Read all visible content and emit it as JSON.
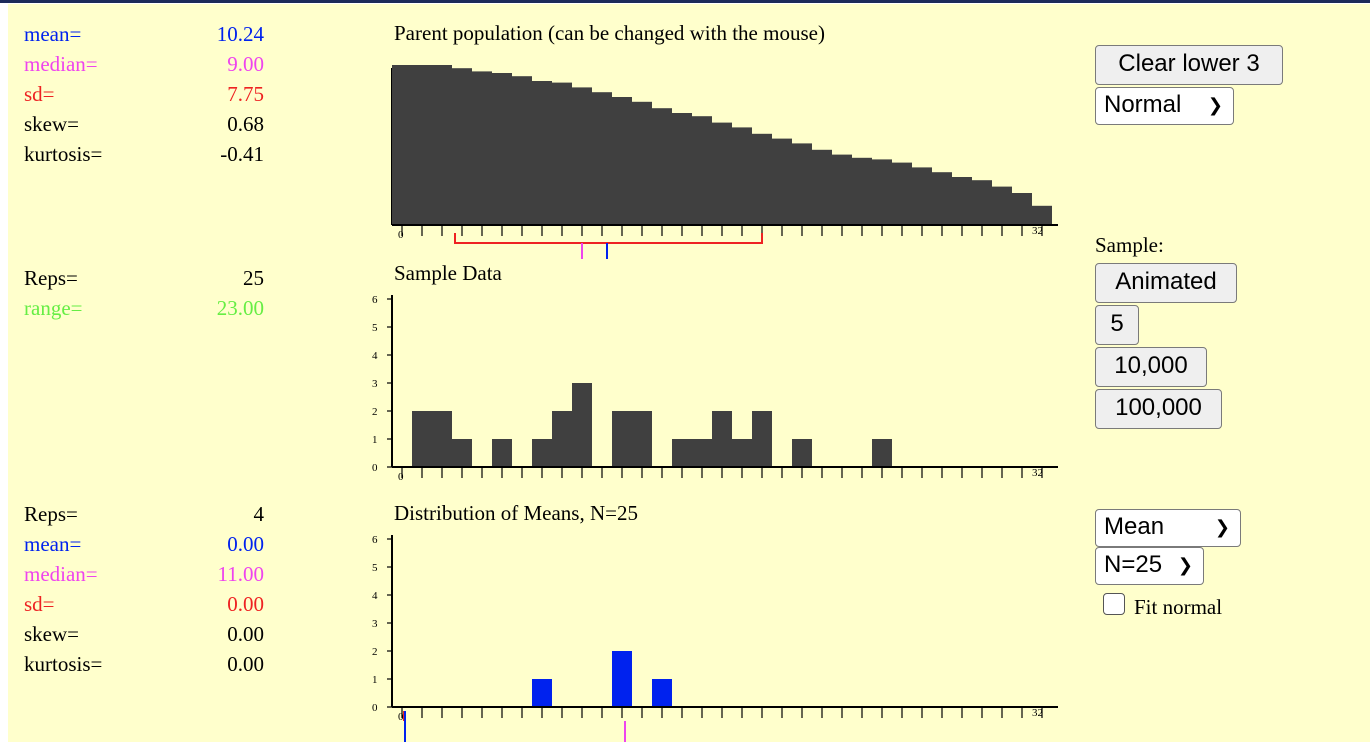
{
  "colors": {
    "mean": "#0022ee",
    "median": "#ee44ee",
    "sd": "#ee2222",
    "range": "#66ee44",
    "bar": "#404040",
    "means_bar": "#0022ee"
  },
  "parent_stats": [
    {
      "label": "mean=",
      "value": "10.24",
      "color": "#0022ee"
    },
    {
      "label": "median=",
      "value": "9.00",
      "color": "#ee44ee"
    },
    {
      "label": "sd=",
      "value": "7.75",
      "color": "#ee2222"
    },
    {
      "label": "skew=",
      "value": "0.68",
      "color": "#000000"
    },
    {
      "label": "kurtosis=",
      "value": "-0.41",
      "color": "#000000"
    }
  ],
  "sample_stats": [
    {
      "label": "Reps=",
      "value": "25",
      "color": "#000000"
    },
    {
      "label": "range=",
      "value": "23.00",
      "color": "#66ee44"
    }
  ],
  "means_stats": [
    {
      "label": "Reps=",
      "value": "4",
      "color": "#000000"
    },
    {
      "label": "mean=",
      "value": "0.00",
      "color": "#0022ee"
    },
    {
      "label": "median=",
      "value": "11.00",
      "color": "#ee44ee"
    },
    {
      "label": "sd=",
      "value": "0.00",
      "color": "#ee2222"
    },
    {
      "label": "skew=",
      "value": "0.00",
      "color": "#000000"
    },
    {
      "label": "kurtosis=",
      "value": "0.00",
      "color": "#000000"
    }
  ],
  "titles": {
    "parent": "Parent population (can be changed with the mouse)",
    "sample": "Sample Data",
    "means": "Distribution of Means, N=25"
  },
  "controls": {
    "clear_button": "Clear lower 3",
    "distribution_select": "Normal",
    "sample_label": "Sample:",
    "animated_button": "Animated",
    "five_button": "5",
    "ten_thousand_button": "10,000",
    "hundred_thousand_button": "100,000",
    "statistic_select": "Mean",
    "n_select": "N=25",
    "fit_normal_label": "Fit normal",
    "fit_normal_checked": false
  },
  "chart_data": [
    {
      "type": "bar",
      "title": "Parent population (can be changed with the mouse)",
      "xlim": [
        0,
        32
      ],
      "x_tick_labels": [
        "0",
        "32"
      ],
      "values": [
        5.0,
        5.0,
        5.0,
        4.9,
        4.8,
        4.75,
        4.65,
        4.5,
        4.45,
        4.3,
        4.15,
        4.0,
        3.85,
        3.65,
        3.5,
        3.4,
        3.2,
        3.05,
        2.85,
        2.7,
        2.55,
        2.35,
        2.2,
        2.1,
        2.05,
        1.95,
        1.8,
        1.65,
        1.5,
        1.4,
        1.2,
        1.0,
        0.6
      ],
      "markers": {
        "sd_from": 3,
        "sd_to": 18.5,
        "median": 9.5,
        "mean": 10.75
      }
    },
    {
      "type": "bar",
      "title": "Sample Data",
      "xlim": [
        0,
        32
      ],
      "ylim": [
        0,
        6
      ],
      "y_ticks": [
        0,
        1,
        2,
        3,
        4,
        5,
        6
      ],
      "x_tick_labels": [
        "0",
        "32"
      ],
      "values": [
        0,
        2,
        2,
        1,
        0,
        1,
        0,
        1,
        2,
        3,
        0,
        2,
        2,
        0,
        1,
        1,
        2,
        1,
        2,
        0,
        1,
        0,
        0,
        0,
        1,
        0,
        0,
        0,
        0,
        0,
        0,
        0,
        0
      ]
    },
    {
      "type": "bar",
      "title": "Distribution of Means, N=25",
      "xlim": [
        0,
        32
      ],
      "ylim": [
        0,
        6
      ],
      "y_ticks": [
        0,
        1,
        2,
        3,
        4,
        5,
        6
      ],
      "x_tick_labels": [
        "0",
        "32"
      ],
      "values": [
        0,
        0,
        0,
        0,
        0,
        0,
        0,
        1,
        0,
        0,
        0,
        2,
        0,
        1,
        0,
        0,
        0,
        0,
        0,
        0,
        0,
        0,
        0,
        0,
        0,
        0,
        0,
        0,
        0,
        0,
        0,
        0,
        0
      ],
      "markers": {
        "sd": 0,
        "mean": 0,
        "median": 11
      }
    }
  ]
}
